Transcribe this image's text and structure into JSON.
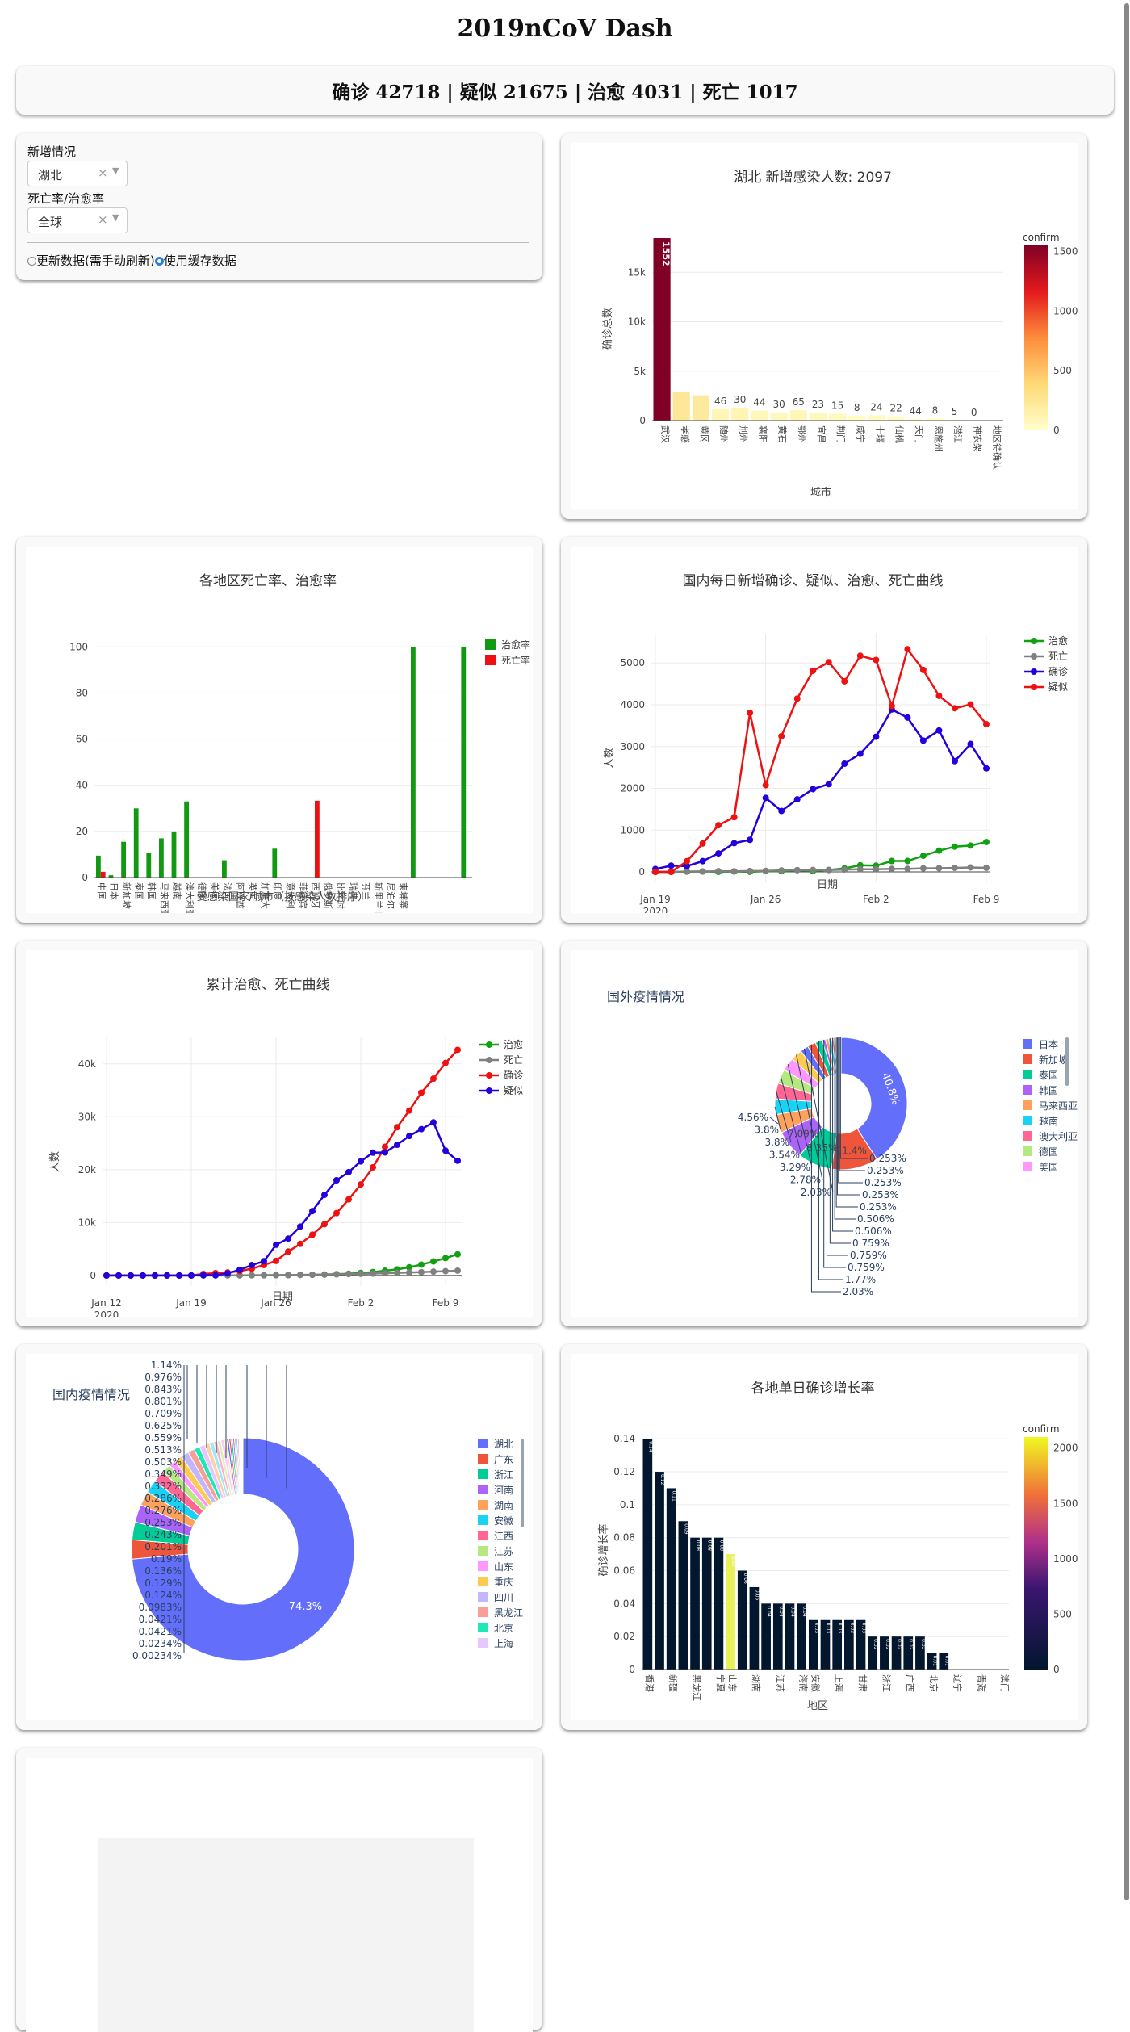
{
  "title": "2019nCoV Dash",
  "summary": "确诊 42718 | 疑似 21675 | 治愈 4031 | 死亡 1017",
  "controls": {
    "new_label": "新增情况",
    "new_value": "湖北",
    "rate_label": "死亡率/治愈率",
    "rate_value": "全球",
    "clear_icon": "×",
    "caret_icon": "▼",
    "radio_update": "更新数据(需手动刷新)",
    "radio_cache": "使用缓存数据"
  },
  "chart_data": [
    {
      "type": "bar",
      "title": "湖北 新增感染人数: 2097",
      "xlabel": "城市",
      "ylabel": "确诊总数",
      "colorbar_title": "confirm",
      "colorbar_ticks": [
        "1500",
        "1000",
        "500",
        "0"
      ],
      "ylim": [
        0,
        18700
      ],
      "yticks": [
        0,
        5000,
        10000,
        15000
      ],
      "ytick_labels": [
        "0",
        "5k",
        "10k",
        "15k"
      ],
      "categories": [
        "武汉",
        "孝感",
        "黄冈",
        "随州",
        "荆州",
        "襄阳",
        "黄石",
        "鄂州",
        "宜昌",
        "荆门",
        "咸宁",
        "十堰",
        "仙桃",
        "天门",
        "恩施州",
        "潜江",
        "神农架",
        "地区待确认"
      ],
      "values": [
        18454,
        2874,
        2567,
        1160,
        1290,
        1008,
        826,
        1052,
        810,
        700,
        495,
        549,
        440,
        177,
        220,
        88,
        10,
        0
      ],
      "labels": [
        "1552",
        "",
        "",
        "46",
        "30",
        "44",
        "30",
        "65",
        "23",
        "15",
        "8",
        "24",
        "22",
        "44",
        "8",
        "5",
        "0",
        ""
      ]
    },
    {
      "type": "bar",
      "title": "各地区死亡率、治愈率",
      "xlabel": "受感染国家/城市（按感染人数排序）",
      "ylim": [
        0,
        105
      ],
      "yticks": [
        0,
        20,
        40,
        60,
        80,
        100
      ],
      "series": [
        {
          "name": "治愈率",
          "color": "#119911",
          "values": [
            9.5,
            1,
            15.5,
            30,
            10.5,
            17,
            20,
            33,
            0,
            0,
            7.5,
            0,
            0,
            0,
            12.5,
            0,
            0,
            0,
            0,
            0,
            0,
            0,
            0,
            0,
            0,
            100,
            0,
            0,
            0,
            100
          ]
        },
        {
          "name": "死亡率",
          "color": "#ee1111",
          "values": [
            2.5,
            0,
            0,
            0,
            0,
            0,
            0,
            0,
            0,
            0,
            0,
            0,
            0,
            0,
            0,
            0,
            0,
            33.3,
            0,
            0,
            0,
            0,
            0,
            0,
            0,
            0,
            0,
            0,
            0,
            0
          ]
        }
      ],
      "categories": [
        "中国",
        "日本",
        "新加坡",
        "泰国",
        "韩国",
        "马来西亚",
        "越南",
        "澳大利亚",
        "德国",
        "美国",
        "法国",
        "阿联酋",
        "英国",
        "加拿大",
        "印度",
        "意大利",
        "菲律宾",
        "西班牙",
        "俄罗斯",
        "比利时",
        "瑞典",
        "芬兰",
        "斯里兰卡",
        "尼泊尔",
        "柬埔寨",
        "",
        "",
        "",
        "",
        ""
      ]
    },
    {
      "type": "line",
      "title": "国内每日新增确诊、疑似、治愈、死亡曲线",
      "xlabel": "日期",
      "ylabel": "人数",
      "ylim": [
        -250,
        5700
      ],
      "yticks": [
        0,
        1000,
        2000,
        3000,
        4000,
        5000
      ],
      "x_range": [
        "2020-01-19",
        "2020-02-10"
      ],
      "xticks": [
        "Jan 19\n2020",
        "Jan 26",
        "Feb 2",
        "Feb 9"
      ],
      "series": [
        {
          "name": "治愈",
          "color": "#11a011",
          "values": [
            0,
            3,
            6,
            12,
            1,
            11,
            3,
            19,
            17,
            43,
            21,
            47,
            85,
            160,
            150,
            262,
            261,
            387,
            510,
            604,
            632,
            716
          ]
        },
        {
          "name": "死亡",
          "color": "#808080",
          "values": [
            0,
            3,
            8,
            8,
            17,
            16,
            24,
            26,
            38,
            43,
            46,
            45,
            57,
            64,
            65,
            73,
            73,
            86,
            89,
            97,
            108,
            97
          ]
        },
        {
          "name": "确诊",
          "color": "#2200dd",
          "values": [
            70,
            151,
            140,
            259,
            444,
            688,
            769,
            1771,
            1459,
            1737,
            1982,
            2102,
            2590,
            2829,
            3235,
            3887,
            3694,
            3143,
            3385,
            2652,
            3062,
            2478
          ]
        },
        {
          "name": "疑似",
          "color": "#ee1111",
          "values": [
            0,
            0,
            257,
            680,
            1118,
            1309,
            3806,
            2077,
            3248,
            4148,
            4812,
            5019,
            4562,
            5173,
            5072,
            3971,
            5328,
            4833,
            4214,
            3916,
            4008,
            3536
          ]
        }
      ]
    },
    {
      "type": "line",
      "title": "累计治愈、死亡曲线",
      "xlabel": "日期",
      "ylabel": "人数",
      "ylim": [
        -2000,
        45000
      ],
      "yticks": [
        0,
        10000,
        20000,
        30000,
        40000
      ],
      "ytick_labels": [
        "0",
        "10k",
        "20k",
        "30k",
        "40k"
      ],
      "x_range": [
        "2020-01-12",
        "2020-02-10"
      ],
      "xticks": [
        "Jan 12\n2020",
        "Jan 19",
        "Jan 26",
        "Feb 2",
        "Feb 9"
      ],
      "series": [
        {
          "name": "治愈",
          "color": "#11a011",
          "values": [
            0,
            0,
            0,
            0,
            0,
            0,
            0,
            0,
            0,
            25,
            25,
            28,
            34,
            38,
            51,
            60,
            103,
            124,
            171,
            243,
            328,
            475,
            632,
            892,
            1153,
            1540,
            2050,
            2649,
            3281,
            3996
          ]
        },
        {
          "name": "死亡",
          "color": "#808080",
          "values": [
            0,
            0,
            0,
            0,
            0,
            0,
            0,
            0,
            0,
            6,
            9,
            17,
            25,
            41,
            56,
            80,
            106,
            132,
            170,
            213,
            259,
            304,
            361,
            425,
            490,
            563,
            636,
            722,
            811,
            908
          ]
        },
        {
          "name": "确诊",
          "color": "#ee1111",
          "values": [
            0,
            0,
            0,
            0,
            0,
            0,
            0,
            0,
            291,
            440,
            571,
            830,
            1287,
            1975,
            2744,
            4515,
            5974,
            7711,
            9692,
            11791,
            14380,
            17205,
            20438,
            24324,
            28018,
            31161,
            34546,
            37198,
            40171,
            42638
          ]
        },
        {
          "name": "疑似",
          "color": "#2200dd",
          "values": [
            0,
            0,
            0,
            0,
            0,
            0,
            0,
            0,
            54,
            37,
            393,
            1072,
            1965,
            2684,
            5794,
            6973,
            9239,
            12167,
            15238,
            17988,
            19544,
            21558,
            23214,
            23260,
            24702,
            26359,
            27657,
            28942,
            23589,
            21675
          ]
        }
      ]
    },
    {
      "type": "pie",
      "title": "国外疫情情况",
      "hole": 0.45,
      "labels": [
        "日本",
        "新加坡",
        "泰国",
        "韩国",
        "马来西亚",
        "越南",
        "澳大利亚",
        "德国",
        "美国"
      ],
      "slices": [
        {
          "name": "日本",
          "value": 40.8,
          "label": "40.8%",
          "color": "#636efa"
        },
        {
          "name": "新加坡",
          "value": 11.4,
          "label": "11.4%",
          "color": "#ef553b"
        },
        {
          "name": "泰国",
          "value": 8.35,
          "label": "8.35%",
          "color": "#00cc96"
        },
        {
          "name": "韩国",
          "value": 7.09,
          "label": "7.09%",
          "color": "#ab63fa"
        },
        {
          "name": "马来西亚",
          "value": 4.56,
          "label": "4.56%",
          "color": "#ffa15a"
        },
        {
          "name": "越南",
          "value": 3.8,
          "label": "3.8%",
          "color": "#19d3f3"
        },
        {
          "name": "澳大利亚",
          "value": 3.8,
          "label": "3.8%",
          "color": "#ff6692"
        },
        {
          "name": "德国",
          "value": 3.54,
          "label": "3.54%",
          "color": "#b6e880"
        },
        {
          "name": "美国",
          "value": 3.29,
          "label": "3.29%",
          "color": "#ff97ff"
        },
        {
          "name": "",
          "value": 2.78,
          "label": "2.78%",
          "color": "#fecb52"
        },
        {
          "name": "",
          "value": 2.03,
          "label": "2.03%",
          "color": "#636efa"
        },
        {
          "name": "",
          "value": 2.03,
          "label": "2.03%",
          "color": "#ef553b"
        },
        {
          "name": "",
          "value": 1.77,
          "label": "1.77%",
          "color": "#00cc96"
        },
        {
          "name": "",
          "value": 0.759,
          "label": "0.759%",
          "color": "#ab63fa"
        },
        {
          "name": "",
          "value": 0.759,
          "label": "0.759%",
          "color": "#ffa15a"
        },
        {
          "name": "",
          "value": 0.759,
          "label": "0.759%",
          "color": "#19d3f3"
        },
        {
          "name": "",
          "value": 0.506,
          "label": "0.506%",
          "color": "#ff6692"
        },
        {
          "name": "",
          "value": 0.506,
          "label": "0.506%",
          "color": "#b6e880"
        },
        {
          "name": "",
          "value": 0.253,
          "label": "0.253%",
          "color": "#ff97ff"
        },
        {
          "name": "",
          "value": 0.253,
          "label": "0.253%",
          "color": "#fecb52"
        },
        {
          "name": "",
          "value": 0.253,
          "label": "0.253%",
          "color": "#636efa"
        },
        {
          "name": "",
          "value": 0.253,
          "label": "0.253%",
          "color": "#ef553b"
        },
        {
          "name": "",
          "value": 0.253,
          "label": "0.253%",
          "color": "#00cc96"
        }
      ]
    },
    {
      "type": "pie",
      "title": "国内疫情情况",
      "hole": 0.45,
      "labels": [
        "湖北",
        "广东",
        "浙江",
        "河南",
        "湖南",
        "安徽",
        "江西",
        "江苏",
        "山东",
        "重庆",
        "四川",
        "黑龙江",
        "北京",
        "上海"
      ],
      "slices": [
        {
          "name": "湖北",
          "value": 74.3,
          "label": "74.3%",
          "color": "#636efa"
        },
        {
          "name": "广东",
          "value": 2.8,
          "label": "",
          "color": "#ef553b"
        },
        {
          "name": "浙江",
          "value": 2.6,
          "label": "",
          "color": "#00cc96"
        },
        {
          "name": "河南",
          "value": 2.6,
          "label": "",
          "color": "#ab63fa"
        },
        {
          "name": "湖南",
          "value": 2.1,
          "label": "",
          "color": "#ffa15a"
        },
        {
          "name": "安徽",
          "value": 1.9,
          "label": "",
          "color": "#19d3f3"
        },
        {
          "name": "江西",
          "value": 1.8,
          "label": "",
          "color": "#ff6692"
        },
        {
          "name": "江苏",
          "value": 1.3,
          "label": "",
          "color": "#b6e880"
        },
        {
          "name": "山东",
          "value": 1.0,
          "label": "",
          "color": "#ff97ff"
        },
        {
          "name": "重庆",
          "value": 1.17,
          "label": "",
          "color": "#fecb52"
        },
        {
          "name": "四川",
          "value": 1.14,
          "label": "1.14%",
          "color": "#c4b5ff"
        },
        {
          "name": "黑龙江",
          "value": 0.976,
          "label": "0.976%",
          "color": "#f8a097"
        },
        {
          "name": "北京",
          "value": 0.843,
          "label": "0.843%",
          "color": "#1ee8b5"
        },
        {
          "name": "上海",
          "value": 0.801,
          "label": "0.801%",
          "color": "#e6c8ff"
        },
        {
          "name": "",
          "value": 0.709,
          "label": "0.709%",
          "color": "#ffd0a8"
        },
        {
          "name": "",
          "value": 0.625,
          "label": "0.625%",
          "color": "#9ce9f7"
        },
        {
          "name": "",
          "value": 0.559,
          "label": "0.559%",
          "color": "#ffb3c9"
        },
        {
          "name": "",
          "value": 0.513,
          "label": "0.513%",
          "color": "#d8f2bd"
        },
        {
          "name": "",
          "value": 0.503,
          "label": "0.503%",
          "color": "#ffc6ff"
        },
        {
          "name": "",
          "value": 0.349,
          "label": "0.349%",
          "color": "#fee4a5"
        },
        {
          "name": "",
          "value": 0.332,
          "label": "0.332%",
          "color": "#636efa"
        },
        {
          "name": "",
          "value": 0.286,
          "label": "0.286%",
          "color": "#ef553b"
        },
        {
          "name": "",
          "value": 0.276,
          "label": "0.276%",
          "color": "#00cc96"
        },
        {
          "name": "",
          "value": 0.253,
          "label": "0.253%",
          "color": "#ab63fa"
        },
        {
          "name": "",
          "value": 0.243,
          "label": "0.243%",
          "color": "#ffa15a"
        },
        {
          "name": "",
          "value": 0.201,
          "label": "0.201%",
          "color": "#19d3f3"
        },
        {
          "name": "",
          "value": 0.19,
          "label": "0.19%",
          "color": "#ff6692"
        },
        {
          "name": "",
          "value": 0.136,
          "label": "0.136%",
          "color": "#b6e880"
        },
        {
          "name": "",
          "value": 0.129,
          "label": "0.129%",
          "color": "#ff97ff"
        },
        {
          "name": "",
          "value": 0.124,
          "label": "0.124%",
          "color": "#fecb52"
        },
        {
          "name": "",
          "value": 0.0983,
          "label": "0.0983%",
          "color": "#636efa"
        },
        {
          "name": "",
          "value": 0.0421,
          "label": "0.0421%",
          "color": "#ef553b"
        },
        {
          "name": "",
          "value": 0.0421,
          "label": "0.0421%",
          "color": "#00cc96"
        },
        {
          "name": "",
          "value": 0.0234,
          "label": "0.0234%",
          "color": "#ab63fa"
        },
        {
          "name": "",
          "value": 0.00234,
          "label": "0.00234%",
          "color": "#ffa15a"
        }
      ]
    },
    {
      "type": "bar",
      "title": "各地单日确诊增长率",
      "xlabel": "地区",
      "ylabel": "确诊增长率",
      "colorbar_title": "confirm",
      "colorbar_ticks": [
        "2000",
        "1500",
        "1000",
        "500",
        "0"
      ],
      "ylim": [
        0,
        0.145
      ],
      "yticks": [
        0,
        0.02,
        0.04,
        0.06,
        0.08,
        0.1,
        0.12,
        0.14
      ],
      "categories": [
        "香港",
        "",
        "新疆",
        "",
        "黑龙江",
        "",
        "宁夏",
        "山东",
        "",
        "湖南",
        "",
        "江苏",
        "",
        "海南",
        "安徽",
        "",
        "上海",
        "",
        "甘肃",
        "",
        "浙江",
        "",
        "广西",
        "",
        "北京",
        "",
        "辽宁",
        "",
        "青海",
        "",
        "澳门"
      ],
      "values": [
        0.14,
        0.12,
        0.11,
        0.09,
        0.08,
        0.08,
        0.08,
        0.07,
        0.06,
        0.05,
        0.04,
        0.04,
        0.04,
        0.04,
        0.03,
        0.03,
        0.03,
        0.03,
        0.03,
        0.02,
        0.02,
        0.02,
        0.02,
        0.02,
        0.01,
        0.01,
        0,
        0,
        0,
        0,
        0
      ],
      "labels": [
        "0.14",
        "0.12",
        "0.11",
        "0.09",
        "0.08",
        "0.08",
        "0.08",
        "0.07",
        "0.06",
        "0.05",
        "0.04",
        "0.04",
        "0.04",
        "0.04",
        "0.03",
        "0.03",
        "0.03",
        "0.03",
        "0.03",
        "0.02",
        "0.02",
        "0.02",
        "0.02",
        "0.02",
        "0.01",
        "0.01",
        "",
        "",
        "",
        "",
        ""
      ],
      "highlight_index": 7
    }
  ]
}
